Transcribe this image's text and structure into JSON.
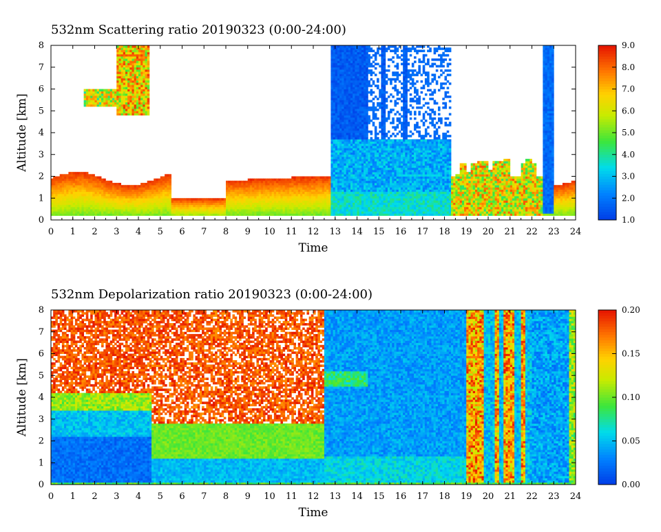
{
  "chart_data": [
    {
      "type": "heatmap",
      "title": "532nm Scattering ratio   20190323 (0:00-24:00)",
      "xlabel": "Time",
      "ylabel": "Altitude [km]",
      "xlim": [
        0,
        24
      ],
      "ylim": [
        0,
        8
      ],
      "xticks": [
        0,
        1,
        2,
        3,
        4,
        5,
        6,
        7,
        8,
        9,
        10,
        11,
        12,
        13,
        14,
        15,
        16,
        17,
        18,
        19,
        20,
        21,
        22,
        23,
        24
      ],
      "yticks": [
        0,
        1,
        2,
        3,
        4,
        5,
        6,
        7,
        8
      ],
      "colorbar": {
        "min": 1.0,
        "max": 9.0,
        "ticks": [
          "1.0",
          "2.0",
          "3.0",
          "4.0",
          "5.0",
          "6.0",
          "7.0",
          "8.0",
          "9.0"
        ],
        "colormap": "rainbow (blue-cyan-green-yellow-orange-red)"
      },
      "features": [
        {
          "desc": "boundary layer aerosol",
          "t": [
            0,
            12.8
          ],
          "alt": [
            0.2,
            2.2
          ],
          "value_range": [
            4,
            9
          ]
        },
        {
          "desc": "elevated aerosol layer",
          "t": [
            1.5,
            4.8
          ],
          "alt": [
            4.8,
            8
          ],
          "value_range": [
            2,
            9
          ]
        },
        {
          "desc": "cloud / rain column",
          "t": [
            12.8,
            18.3
          ],
          "alt": [
            0.3,
            8
          ],
          "value_range": [
            1,
            3
          ]
        },
        {
          "desc": "mixed layer with clouds",
          "t": [
            18.3,
            22.5
          ],
          "alt": [
            0.3,
            3
          ],
          "value_range": [
            3,
            9
          ]
        },
        {
          "desc": "cloud column",
          "t": [
            22.5,
            23.0
          ],
          "alt": [
            0.3,
            8
          ],
          "value_range": [
            1,
            2
          ]
        },
        {
          "desc": "boundary layer",
          "t": [
            23.0,
            24
          ],
          "alt": [
            0.3,
            2
          ],
          "value_range": [
            4,
            9
          ]
        }
      ]
    },
    {
      "type": "heatmap",
      "title": "532nm Depolarization ratio   20190323 (0:00-24:00)",
      "xlabel": "Time",
      "ylabel": "Altitude [km]",
      "xlim": [
        0,
        24
      ],
      "ylim": [
        0,
        8
      ],
      "xticks": [
        0,
        1,
        2,
        3,
        4,
        5,
        6,
        7,
        8,
        9,
        10,
        11,
        12,
        13,
        14,
        15,
        16,
        17,
        18,
        19,
        20,
        21,
        22,
        23,
        24
      ],
      "yticks": [
        0,
        1,
        2,
        3,
        4,
        5,
        6,
        7,
        8
      ],
      "colorbar": {
        "min": 0.0,
        "max": 0.2,
        "ticks": [
          "0.00",
          "0.05",
          "0.10",
          "0.15",
          "0.20"
        ],
        "colormap": "rainbow (blue-cyan-green-yellow-orange-red)"
      },
      "features": [
        {
          "desc": "noisy high depolarization",
          "t": [
            0,
            12.5
          ],
          "alt": [
            3.5,
            8
          ],
          "value_range": [
            0.12,
            0.2
          ]
        },
        {
          "desc": "dust layer",
          "t": [
            4.6,
            12.5
          ],
          "alt": [
            1.2,
            3
          ],
          "value_range": [
            0.08,
            0.11
          ]
        },
        {
          "desc": "low depolarization boundary layer",
          "t": [
            0,
            4.6
          ],
          "alt": [
            0,
            2.2
          ],
          "value_range": [
            0.0,
            0.04
          ]
        },
        {
          "desc": "cloud region",
          "t": [
            12.5,
            19
          ],
          "alt": [
            0,
            8
          ],
          "value_range": [
            0.02,
            0.07
          ]
        },
        {
          "desc": "streaks of high depolarization",
          "t": [
            19,
            22
          ],
          "alt": [
            0,
            8
          ],
          "value_range": [
            0.05,
            0.2
          ]
        },
        {
          "desc": "background",
          "t": [
            22,
            24
          ],
          "alt": [
            0,
            8
          ],
          "value_range": [
            0.02,
            0.06
          ]
        }
      ]
    }
  ]
}
